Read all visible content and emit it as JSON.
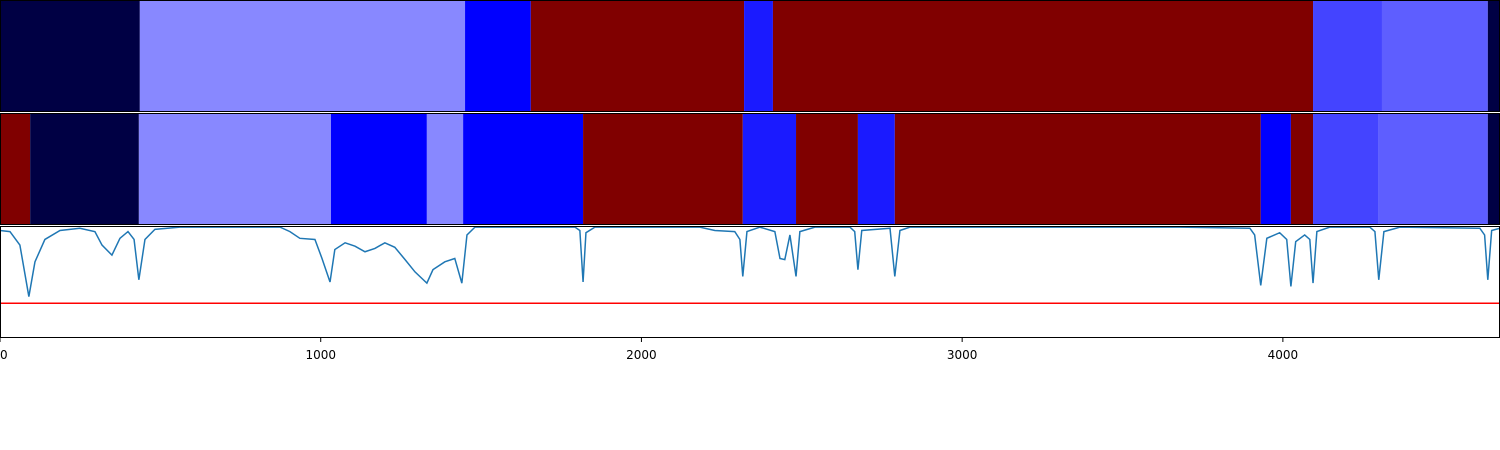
{
  "chart_data": {
    "type": "segmentation",
    "xlim": [
      0,
      4677
    ],
    "xticks": [
      0,
      1000,
      2000,
      3000,
      4000
    ],
    "rows": [
      {
        "bounds": [
          0,
          436,
          1450,
          1655,
          2320,
          2410,
          4094,
          4309,
          4639,
          4677
        ],
        "colors": [
          "#000044",
          "#8888ff",
          "#0000ff",
          "#800000",
          "#1a1aff",
          "#800000",
          "#4444ff",
          "#5e5eff",
          "#000044"
        ]
      },
      {
        "bounds": [
          0,
          94,
          433,
          1032,
          1331,
          1444,
          1818,
          2316,
          2482,
          2675,
          2790,
          3931,
          4025,
          4094,
          4299,
          4639,
          4677
        ],
        "colors": [
          "#800000",
          "#000044",
          "#8888ff",
          "#0000ff",
          "#8888ff",
          "#0000ff",
          "#800000",
          "#1a1aff",
          "#800000",
          "#1a1aff",
          "#800000",
          "#0000ff",
          "#800000",
          "#4444ff",
          "#5e5eff",
          "#000044"
        ]
      }
    ],
    "line": {
      "color": "#1f77b4",
      "ylim": [
        0,
        1
      ],
      "threshold": 0.31,
      "threshold_color": "#ff0000",
      "x": [
        0,
        31,
        62,
        90,
        109,
        140,
        187,
        249,
        296,
        318,
        349,
        374,
        399,
        418,
        433,
        452,
        483,
        561,
        873,
        904,
        935,
        982,
        1004,
        1029,
        1044,
        1076,
        1107,
        1138,
        1169,
        1200,
        1231,
        1263,
        1294,
        1331,
        1350,
        1387,
        1418,
        1440,
        1456,
        1481,
        1793,
        1808,
        1818,
        1827,
        1855,
        2182,
        2229,
        2291,
        2307,
        2316,
        2329,
        2369,
        2416,
        2432,
        2447,
        2463,
        2482,
        2494,
        2541,
        2650,
        2665,
        2675,
        2687,
        2775,
        2790,
        2806,
        2837,
        3679,
        3897,
        3912,
        3931,
        3950,
        3990,
        4012,
        4025,
        4040,
        4068,
        4084,
        4094,
        4106,
        4146,
        4271,
        4287,
        4299,
        4315,
        4365,
        4614,
        4629,
        4639,
        4651,
        4677
      ],
      "values": [
        0.96,
        0.95,
        0.83,
        0.37,
        0.68,
        0.88,
        0.96,
        0.98,
        0.95,
        0.83,
        0.74,
        0.89,
        0.95,
        0.88,
        0.52,
        0.88,
        0.97,
        0.99,
        0.99,
        0.95,
        0.89,
        0.88,
        0.71,
        0.5,
        0.79,
        0.85,
        0.82,
        0.77,
        0.8,
        0.85,
        0.81,
        0.7,
        0.59,
        0.49,
        0.61,
        0.68,
        0.71,
        0.49,
        0.92,
        0.99,
        0.99,
        0.96,
        0.5,
        0.94,
        0.99,
        0.99,
        0.96,
        0.95,
        0.88,
        0.55,
        0.95,
        0.99,
        0.95,
        0.71,
        0.7,
        0.92,
        0.55,
        0.95,
        0.99,
        0.99,
        0.95,
        0.61,
        0.96,
        0.98,
        0.55,
        0.96,
        0.99,
        0.99,
        0.98,
        0.92,
        0.47,
        0.89,
        0.94,
        0.88,
        0.46,
        0.86,
        0.92,
        0.88,
        0.49,
        0.95,
        0.99,
        0.99,
        0.95,
        0.52,
        0.95,
        0.99,
        0.98,
        0.92,
        0.52,
        0.96,
        0.98
      ]
    }
  }
}
